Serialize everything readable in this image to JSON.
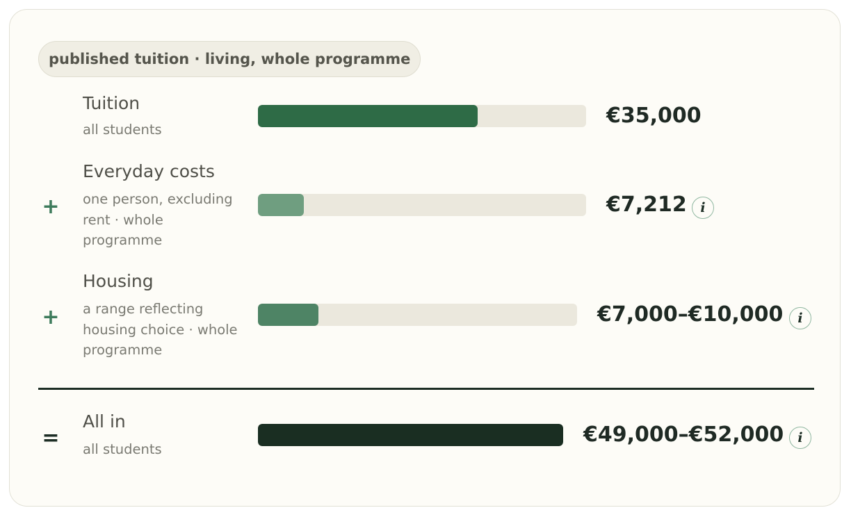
{
  "header": {
    "tag": "published tuition · living, whole programme"
  },
  "rows": [
    {
      "operator": "",
      "title": "Tuition",
      "subtitle": "all students",
      "value": "€35,000",
      "bar_fraction": 0.67,
      "bar_color": "#2e6b46",
      "has_info": false
    },
    {
      "operator": "+",
      "title": "Everyday costs",
      "subtitle": "one person, excluding rent · whole programme",
      "value": "€7,212",
      "bar_fraction": 0.14,
      "bar_color": "#6f9e80",
      "has_info": true
    },
    {
      "operator": "+",
      "title": "Housing",
      "subtitle": "a range reflecting housing choice · whole programme",
      "value": "€7,000–€10,000",
      "bar_fraction": 0.19,
      "bar_color": "#4e8465",
      "has_info": true
    }
  ],
  "total": {
    "operator": "=",
    "title": "All in",
    "subtitle": "all students",
    "value": "€49,000–€52,000",
    "bar_fraction": 1.0,
    "bar_color": "#1a2e22",
    "has_info": true
  },
  "info_icon_glyph": "i",
  "colors": {
    "card_background": "#fdfcf7",
    "track": "#ebe8dd",
    "operator": "#3e7b5c",
    "text_dark": "#1f2a24"
  }
}
